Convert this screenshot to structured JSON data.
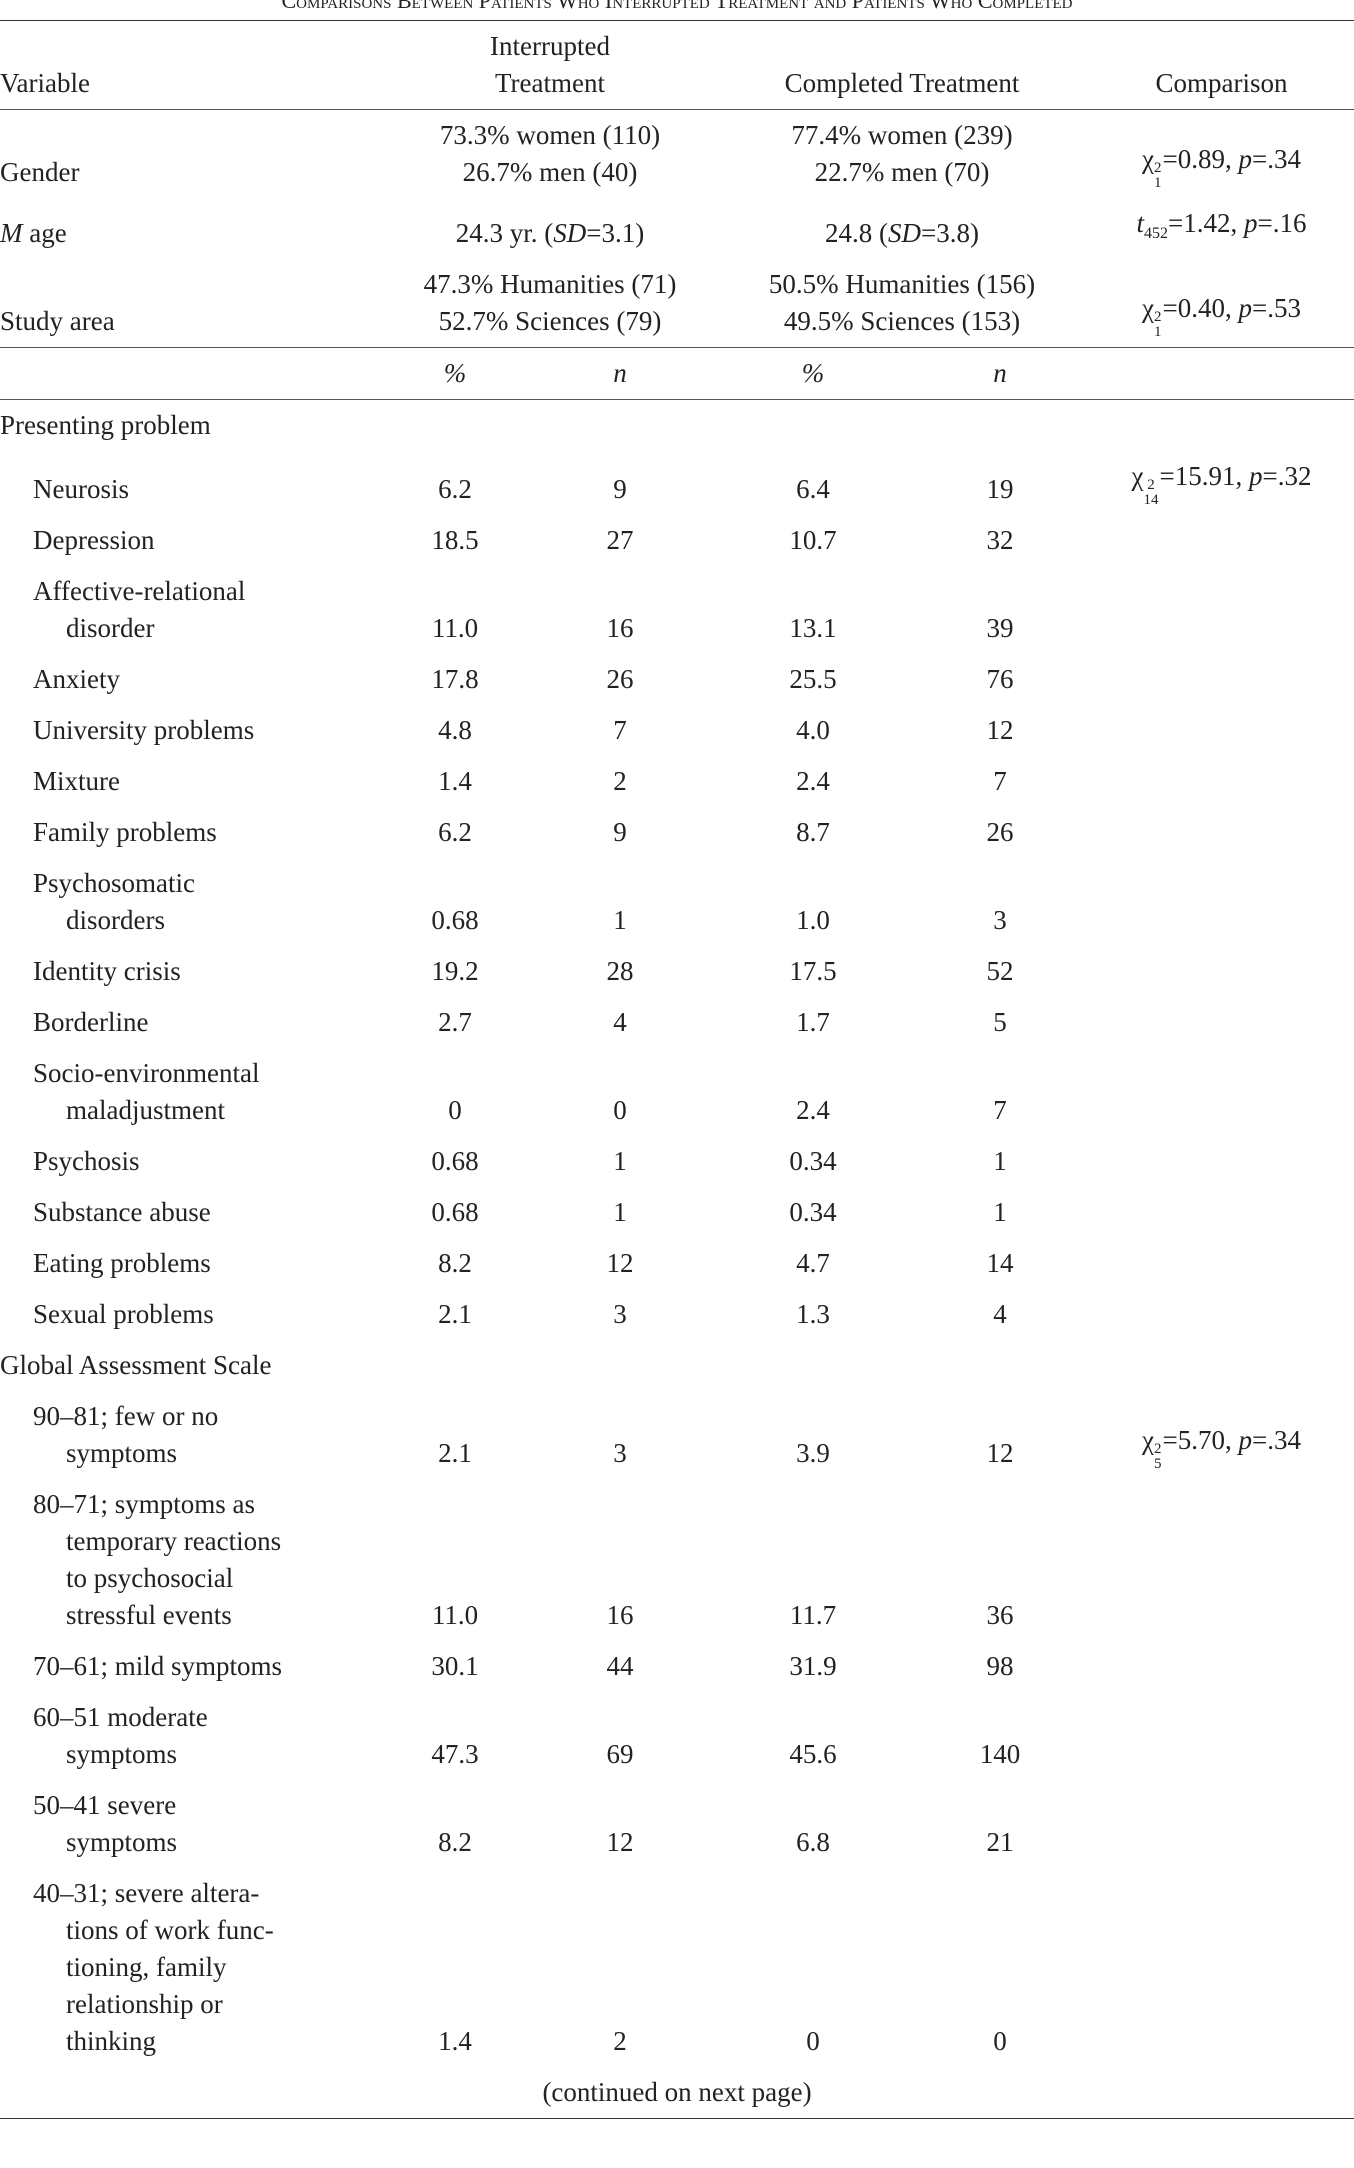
{
  "title": "Comparisons Between Patients Who Interrupted Treatment and Patients Who Completed",
  "header": {
    "variable": "Variable",
    "interrupted": [
      "Interrupted",
      "Treatment"
    ],
    "completed": "Completed Treatment",
    "comparison": "Comparison"
  },
  "demographics": [
    {
      "label": [
        "Gender"
      ],
      "interrupted": [
        "73.3% women (110)",
        "26.7% men (40)"
      ],
      "completed": [
        "77.4% women (239)",
        "22.7% men (70)"
      ],
      "comparison": [
        [
          "χ",
          {
            "supsub": [
              "2",
              "1"
            ]
          },
          "=0.89, ",
          {
            "italic": "p"
          },
          "=.34"
        ]
      ]
    },
    {
      "label": [
        [
          {
            "italic": "M"
          },
          " age"
        ]
      ],
      "interrupted": [
        [
          "24.3 yr. (",
          {
            "italic": "SD"
          },
          "=3.1)"
        ]
      ],
      "completed": [
        [
          "24.8 (",
          {
            "italic": "SD"
          },
          "=3.8)"
        ]
      ],
      "comparison": [
        [
          {
            "italic": "t"
          },
          {
            "sub": "452"
          },
          "=1.42, ",
          {
            "italic": "p"
          },
          "=.16"
        ]
      ]
    },
    {
      "label": [
        "Study area"
      ],
      "interrupted": [
        "47.3% Humanities (71)",
        "52.7% Sciences (79)"
      ],
      "completed": [
        "50.5% Humanities (156)",
        "49.5% Sciences (153)"
      ],
      "comparison": [
        [
          "χ",
          {
            "supsub": [
              "2",
              "1"
            ]
          },
          "=0.40, ",
          {
            "italic": "p"
          },
          "=.53"
        ]
      ]
    }
  ],
  "subheader": [
    "%",
    "n",
    "%",
    "n"
  ],
  "sections": [
    {
      "title": "Presenting problem",
      "rows": [
        {
          "label": [
            "Neurosis"
          ],
          "values": [
            "6.2",
            "9",
            "6.4",
            "19"
          ],
          "comparison": [
            [
              "χ",
              {
                "supsub": [
                  "2",
                  "14"
                ]
              },
              "=15.91, ",
              {
                "italic": "p"
              },
              "=.32"
            ]
          ]
        },
        {
          "label": [
            "Depression"
          ],
          "values": [
            "18.5",
            "27",
            "10.7",
            "32"
          ]
        },
        {
          "label": [
            "Affective-relational",
            "disorder"
          ],
          "values": [
            "11.0",
            "16",
            "13.1",
            "39"
          ]
        },
        {
          "label": [
            "Anxiety"
          ],
          "values": [
            "17.8",
            "26",
            "25.5",
            "76"
          ]
        },
        {
          "label": [
            "University problems"
          ],
          "values": [
            "4.8",
            "7",
            "4.0",
            "12"
          ]
        },
        {
          "label": [
            "Mixture"
          ],
          "values": [
            "1.4",
            "2",
            "2.4",
            "7"
          ]
        },
        {
          "label": [
            "Family problems"
          ],
          "values": [
            "6.2",
            "9",
            "8.7",
            "26"
          ]
        },
        {
          "label": [
            "Psychosomatic",
            "disorders"
          ],
          "values": [
            "0.68",
            "1",
            "1.0",
            "3"
          ]
        },
        {
          "label": [
            "Identity crisis"
          ],
          "values": [
            "19.2",
            "28",
            "17.5",
            "52"
          ]
        },
        {
          "label": [
            "Borderline"
          ],
          "values": [
            "2.7",
            "4",
            "1.7",
            "5"
          ]
        },
        {
          "label": [
            "Socio-environmental",
            "maladjustment"
          ],
          "values": [
            "0",
            "0",
            "2.4",
            "7"
          ]
        },
        {
          "label": [
            "Psychosis"
          ],
          "values": [
            "0.68",
            "1",
            "0.34",
            "1"
          ]
        },
        {
          "label": [
            "Substance abuse"
          ],
          "values": [
            "0.68",
            "1",
            "0.34",
            "1"
          ]
        },
        {
          "label": [
            "Eating problems"
          ],
          "values": [
            "8.2",
            "12",
            "4.7",
            "14"
          ]
        },
        {
          "label": [
            "Sexual problems"
          ],
          "values": [
            "2.1",
            "3",
            "1.3",
            "4"
          ]
        }
      ]
    },
    {
      "title": "Global Assessment Scale",
      "rows": [
        {
          "label": [
            "90–81; few or no",
            "symptoms"
          ],
          "values": [
            "2.1",
            "3",
            "3.9",
            "12"
          ],
          "comparison": [
            [
              "χ",
              {
                "supsub": [
                  "2",
                  "5"
                ]
              },
              "=5.70, ",
              {
                "italic": "p"
              },
              "=.34"
            ]
          ]
        },
        {
          "label": [
            "80–71; symptoms as",
            "temporary reactions",
            "to psychosocial",
            "stressful events"
          ],
          "values": [
            "11.0",
            "16",
            "11.7",
            "36"
          ]
        },
        {
          "label": [
            "70–61; mild symptoms"
          ],
          "values": [
            "30.1",
            "44",
            "31.9",
            "98"
          ]
        },
        {
          "label": [
            "60–51 moderate",
            "symptoms"
          ],
          "values": [
            "47.3",
            "69",
            "45.6",
            "140"
          ]
        },
        {
          "label": [
            "50–41 severe",
            "symptoms"
          ],
          "values": [
            "8.2",
            "12",
            "6.8",
            "21"
          ]
        },
        {
          "label": [
            "40–31; severe altera-",
            "tions of work func-",
            "tioning, family",
            "relationship or",
            "thinking"
          ],
          "values": [
            "1.4",
            "2",
            "0",
            "0"
          ]
        }
      ]
    }
  ],
  "note": "(continued on next page)"
}
